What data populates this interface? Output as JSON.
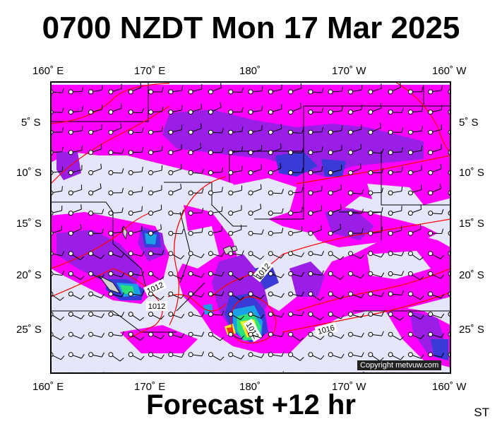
{
  "header": {
    "title": "0700 NZDT Mon 17 Mar 2025"
  },
  "footer": {
    "forecast": "Forecast +12 hr",
    "corner_tag": "ST"
  },
  "credit": "Copyright metvuw.com",
  "axes": {
    "top_lon": [
      "160˚ E",
      "170˚ E",
      "180˚",
      "170˚ W",
      "160˚ W"
    ],
    "bottom_lon": [
      "160˚ E",
      "170˚ E",
      "180˚",
      "170˚ W",
      "160˚ W"
    ],
    "left_lat": [
      "5˚ S",
      "10˚ S",
      "15˚ S",
      "20˚ S",
      "25˚ S"
    ],
    "right_lat": [
      "5˚ S",
      "10˚ S",
      "15˚ S",
      "20˚ S",
      "25˚ S"
    ]
  },
  "isobar_labels": [
    "1012",
    "1012",
    "1012",
    "1012",
    "1016"
  ],
  "colors": {
    "ocean": "#e6e6fa",
    "rain_light": "#ff00ff",
    "rain_moderate": "#9a1ee6",
    "rain_heavy": "#3a3ad8",
    "rain_very_heavy": "#1aa0e6",
    "rain_extreme": "#2ee07a",
    "isobar": "#ff0000"
  }
}
